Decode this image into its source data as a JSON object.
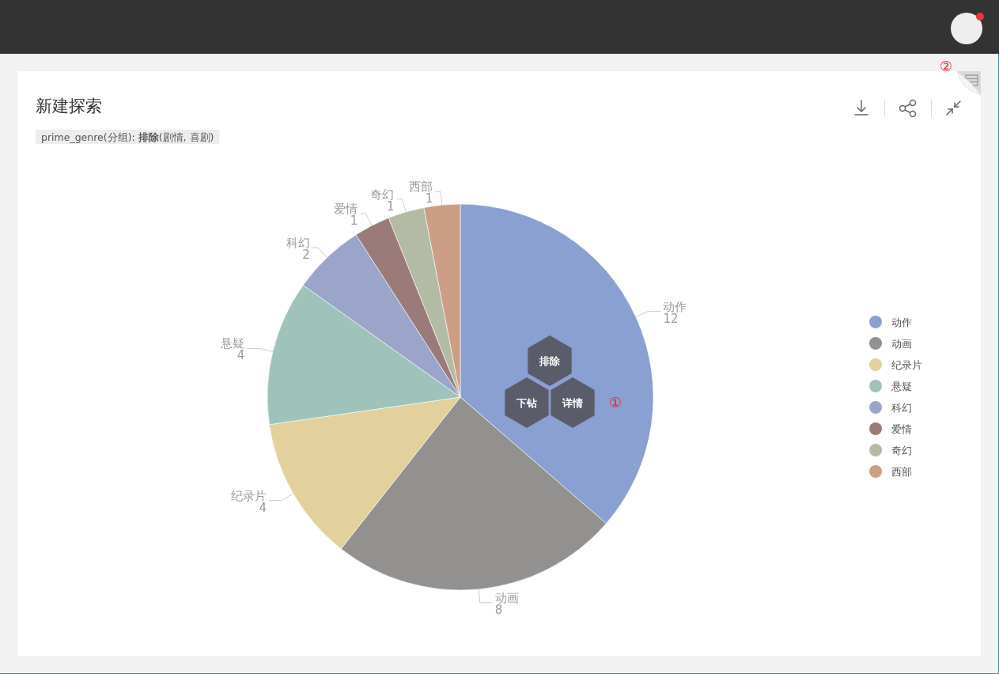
{
  "chart_data": {
    "type": "pie",
    "title": "新建探索",
    "subtitle": "prime_genre(分组): **排除**(剧情, 喜剧)",
    "categories": [
      "动作",
      "动画",
      "纪录片",
      "悬疑",
      "科幻",
      "爱情",
      "奇幻",
      "西部"
    ],
    "values": [
      12,
      8,
      4,
      4,
      2,
      1,
      1,
      1
    ],
    "colors": [
      "#8aa0d2",
      "#929190",
      "#e2d09d",
      "#9fc3bb",
      "#9aa5c9",
      "#9a7b7a",
      "#b3bba5",
      "#cc9e86"
    ],
    "data_labels": true,
    "legend": "right",
    "annotations": [
      "排除",
      "下钻",
      "详情",
      "①",
      "②"
    ]
  }
}
